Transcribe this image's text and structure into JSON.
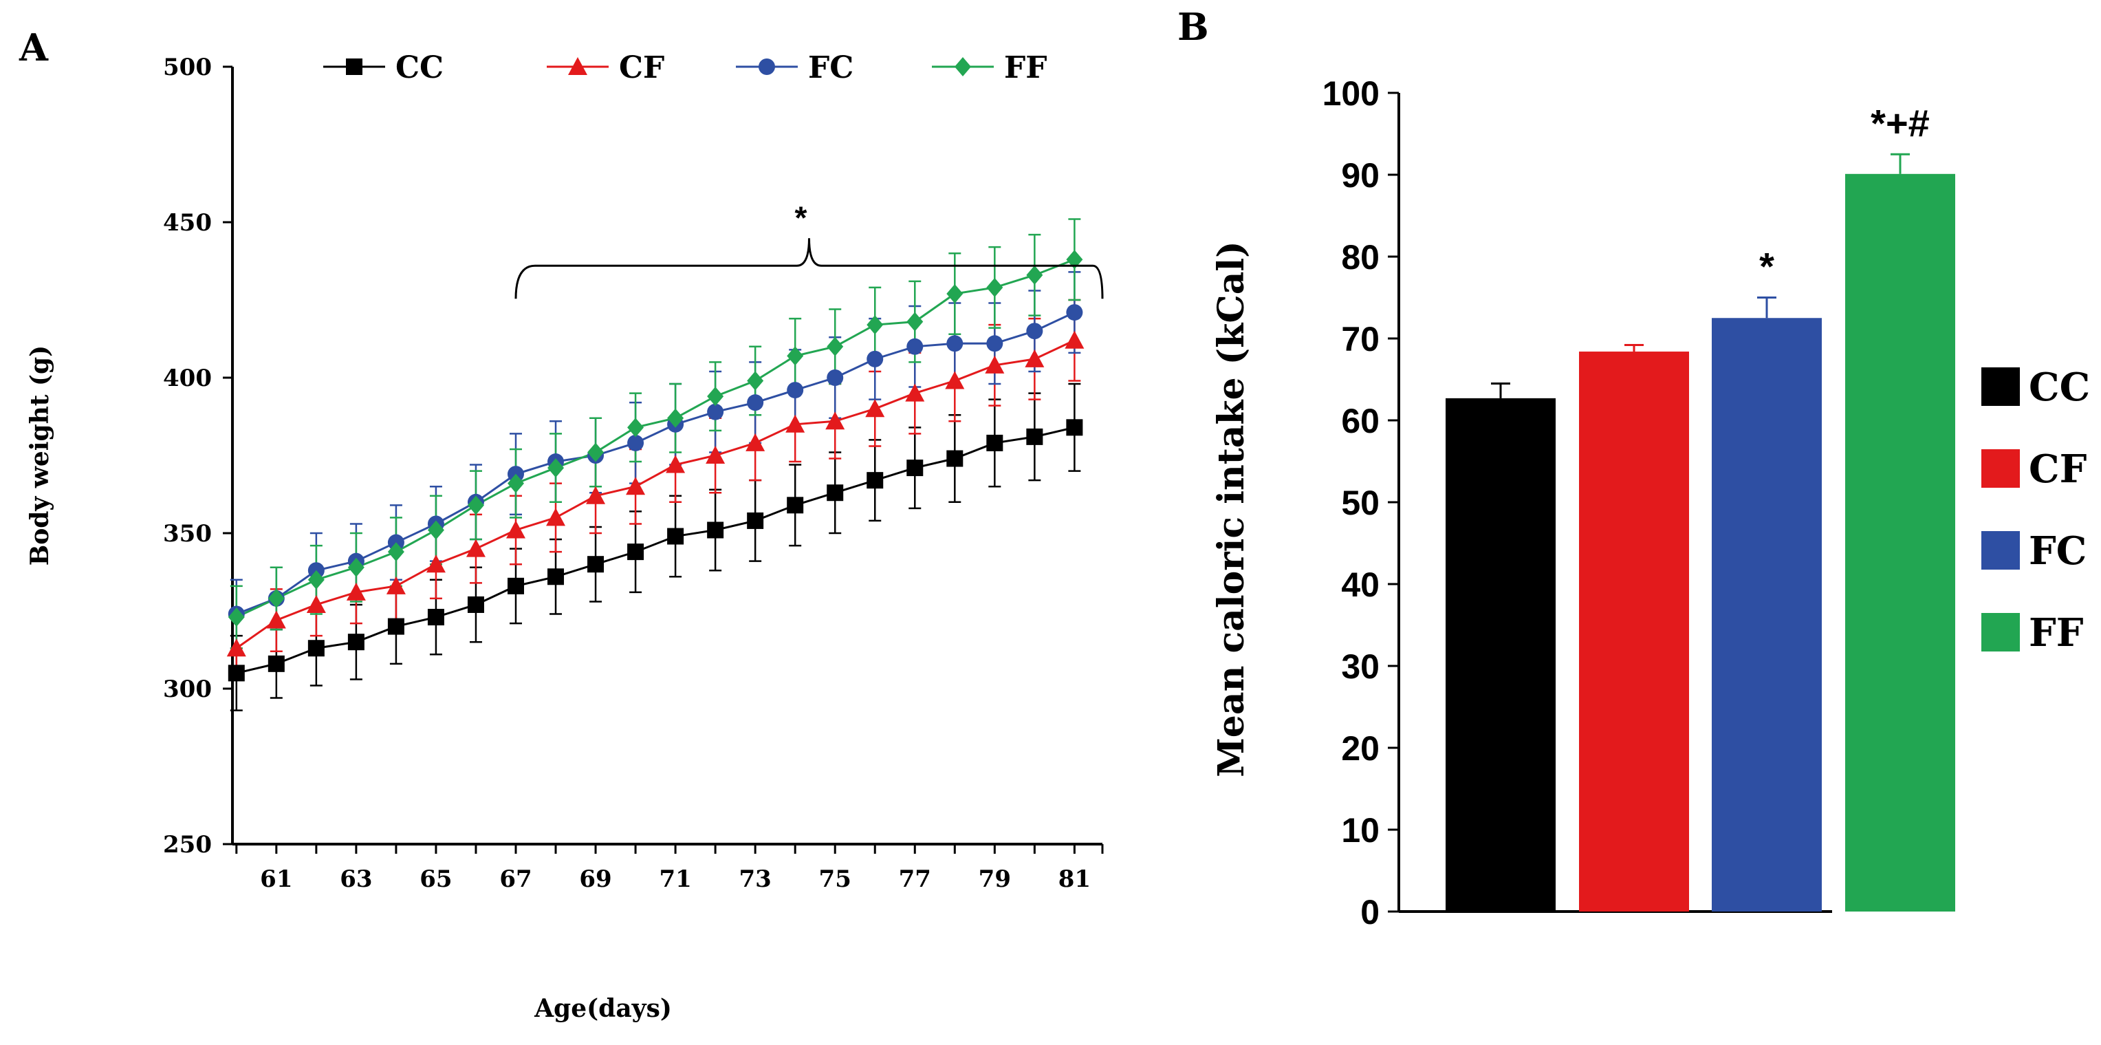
{
  "figure": {
    "panel_a_label": "A",
    "panel_b_label": "B"
  },
  "chart_data": [
    {
      "type": "line",
      "panel": "A",
      "title": "",
      "xlabel": "Age(days)",
      "ylabel": "Body weight (g)",
      "xlim": [
        59.9,
        81.7
      ],
      "ylim": [
        250,
        500
      ],
      "yticks": [
        250,
        300,
        350,
        400,
        450,
        500
      ],
      "xticks": [
        61,
        63,
        65,
        67,
        69,
        71,
        73,
        75,
        77,
        79,
        81
      ],
      "x": [
        60,
        61,
        62,
        63,
        64,
        65,
        66,
        67,
        68,
        69,
        70,
        71,
        72,
        73,
        74,
        75,
        76,
        77,
        78,
        79,
        80,
        81
      ],
      "series": [
        {
          "name": "CC",
          "color": "#000000",
          "marker": "square",
          "values": [
            305,
            308,
            313,
            315,
            320,
            323,
            327,
            333,
            336,
            340,
            344,
            349,
            351,
            354,
            359,
            363,
            367,
            371,
            374,
            379,
            381,
            384
          ],
          "errors": [
            12,
            11,
            12,
            12,
            12,
            12,
            12,
            12,
            12,
            12,
            13,
            13,
            13,
            13,
            13,
            13,
            13,
            13,
            14,
            14,
            14,
            14
          ]
        },
        {
          "name": "CF",
          "color": "#e31a1c",
          "marker": "triangle",
          "values": [
            313,
            322,
            327,
            331,
            333,
            340,
            345,
            351,
            355,
            362,
            365,
            372,
            375,
            379,
            385,
            386,
            390,
            395,
            399,
            404,
            406,
            412
          ],
          "errors": [
            10,
            10,
            10,
            10,
            11,
            11,
            11,
            11,
            11,
            12,
            12,
            12,
            12,
            12,
            12,
            12,
            12,
            13,
            13,
            13,
            13,
            13
          ]
        },
        {
          "name": "FC",
          "color": "#2e4fa3",
          "marker": "circle",
          "values": [
            324,
            329,
            338,
            341,
            347,
            353,
            360,
            369,
            373,
            375,
            379,
            385,
            389,
            392,
            396,
            400,
            406,
            410,
            411,
            411,
            415,
            421
          ],
          "errors": [
            11,
            10,
            12,
            12,
            12,
            12,
            12,
            13,
            13,
            12,
            13,
            13,
            13,
            13,
            13,
            13,
            13,
            13,
            13,
            13,
            13,
            13
          ]
        },
        {
          "name": "FF",
          "color": "#22a652",
          "marker": "diamond",
          "values": [
            323,
            329,
            335,
            339,
            344,
            351,
            359,
            366,
            371,
            376,
            384,
            387,
            394,
            399,
            407,
            410,
            417,
            418,
            427,
            429,
            433,
            438
          ],
          "errors": [
            10,
            10,
            11,
            11,
            11,
            11,
            11,
            11,
            11,
            11,
            11,
            11,
            11,
            11,
            12,
            12,
            12,
            13,
            13,
            13,
            13,
            13
          ]
        }
      ],
      "legend": [
        "CC",
        "CF",
        "FC",
        "FF"
      ],
      "legend_position": "top",
      "annotation": {
        "text": "*",
        "bracket_from_x": 67,
        "bracket_to_x": 81.7,
        "bracket_y": 436
      }
    },
    {
      "type": "bar",
      "panel": "B",
      "title": "",
      "xlabel": "",
      "ylabel": "Mean caloric intake (kCal)",
      "ylim": [
        0,
        100
      ],
      "yticks": [
        0,
        10,
        20,
        30,
        40,
        50,
        60,
        70,
        80,
        90,
        100
      ],
      "categories": [
        "CC",
        "CF",
        "FC",
        "FF"
      ],
      "values": [
        62.7,
        68.4,
        72.5,
        90.1
      ],
      "errors": [
        1.8,
        0.8,
        2.5,
        2.4
      ],
      "colors": [
        "#000000",
        "#e31a1c",
        "#2e4fa3",
        "#22a652"
      ],
      "annotations": [
        "",
        "",
        "*",
        "*+#"
      ],
      "legend": [
        "CC",
        "CF",
        "FC",
        "FF"
      ],
      "legend_position": "right"
    }
  ]
}
